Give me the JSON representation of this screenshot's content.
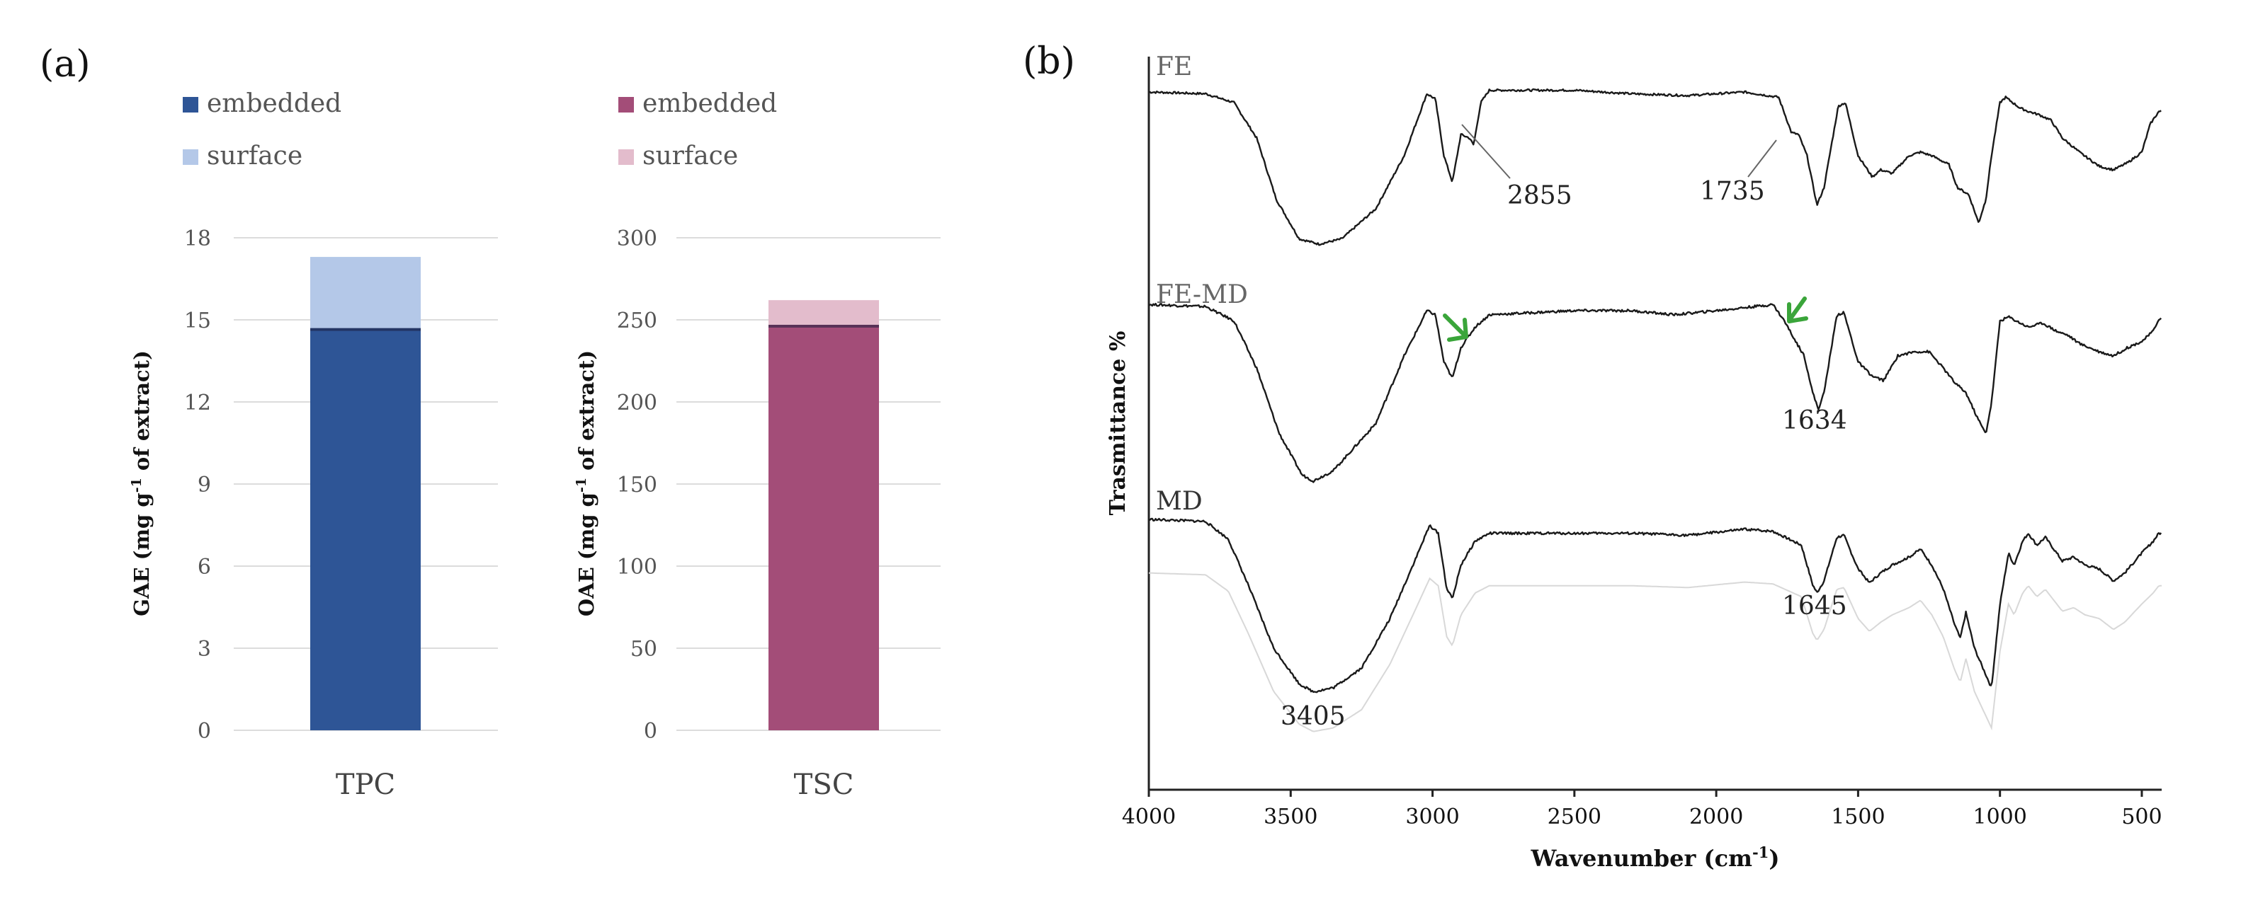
{
  "panels": {
    "a_label": "(a)",
    "b_label": "(b)"
  },
  "chart_data": [
    {
      "type": "bar",
      "stacked": true,
      "categories": [
        "TPC"
      ],
      "series": [
        {
          "name": "embedded",
          "values": [
            14.7
          ],
          "color": "#2e5596"
        },
        {
          "name": "surface",
          "values": [
            2.6
          ],
          "color": "#b4c8e8"
        }
      ],
      "ylabel": "GAE (mg g-1 of extract)",
      "ylabel_main": "GAE (mg g",
      "ylabel_sup": "-1",
      "ylabel_tail": " of extract)",
      "ylim": [
        0,
        18
      ],
      "yticks": [
        "0",
        "3",
        "6",
        "9",
        "12",
        "15",
        "18"
      ],
      "legend": [
        "embedded",
        "surface"
      ],
      "legend_position": "top-left",
      "grid": true
    },
    {
      "type": "bar",
      "stacked": true,
      "categories": [
        "TSC"
      ],
      "series": [
        {
          "name": "embedded",
          "values": [
            247
          ],
          "color": "#a34d78"
        },
        {
          "name": "surface",
          "values": [
            15
          ],
          "color": "#e3bccc"
        }
      ],
      "ylabel": "OAE (mg g-1 of extract)",
      "ylabel_main": "OAE (mg g",
      "ylabel_sup": "-1",
      "ylabel_tail": " of extract)",
      "ylim": [
        0,
        300
      ],
      "yticks": [
        "0",
        "50",
        "100",
        "150",
        "200",
        "250",
        "300"
      ],
      "legend": [
        "embedded",
        "surface"
      ],
      "legend_position": "top-left",
      "grid": true
    },
    {
      "type": "line",
      "title": "",
      "xlabel": "Wavenumber (cm-1)",
      "xlabel_main": "Wavenumber (cm",
      "xlabel_sup": "-1",
      "xlabel_tail": ")",
      "ylabel": "Trasmittance %",
      "xlim": [
        4000,
        430
      ],
      "xticks": [
        "4000",
        "3500",
        "3000",
        "2500",
        "2000",
        "1500",
        "1000",
        "500"
      ],
      "xtick_values": [
        4000,
        3500,
        3000,
        2500,
        2000,
        1500,
        1000,
        500
      ],
      "series": [
        {
          "name": "FE",
          "color": "#1a1a1a",
          "baseline": 0.9,
          "noise": 0.012,
          "points": [
            [
              4000,
              0.96
            ],
            [
              3800,
              0.95
            ],
            [
              3700,
              0.9
            ],
            [
              3620,
              0.7
            ],
            [
              3550,
              0.35
            ],
            [
              3470,
              0.13
            ],
            [
              3400,
              0.1
            ],
            [
              3320,
              0.13
            ],
            [
              3200,
              0.3
            ],
            [
              3100,
              0.6
            ],
            [
              3020,
              0.95
            ],
            [
              2990,
              0.92
            ],
            [
              2960,
              0.6
            ],
            [
              2930,
              0.45
            ],
            [
              2900,
              0.72
            ],
            [
              2870,
              0.7
            ],
            [
              2855,
              0.66
            ],
            [
              2830,
              0.9
            ],
            [
              2800,
              0.97
            ],
            [
              2500,
              0.97
            ],
            [
              2300,
              0.95
            ],
            [
              2100,
              0.94
            ],
            [
              1900,
              0.96
            ],
            [
              1780,
              0.93
            ],
            [
              1735,
              0.73
            ],
            [
              1710,
              0.72
            ],
            [
              1680,
              0.6
            ],
            [
              1645,
              0.32
            ],
            [
              1620,
              0.42
            ],
            [
              1570,
              0.88
            ],
            [
              1545,
              0.9
            ],
            [
              1500,
              0.6
            ],
            [
              1450,
              0.48
            ],
            [
              1420,
              0.52
            ],
            [
              1380,
              0.5
            ],
            [
              1320,
              0.6
            ],
            [
              1280,
              0.62
            ],
            [
              1240,
              0.6
            ],
            [
              1180,
              0.55
            ],
            [
              1150,
              0.42
            ],
            [
              1110,
              0.38
            ],
            [
              1075,
              0.22
            ],
            [
              1050,
              0.35
            ],
            [
              1030,
              0.6
            ],
            [
              1000,
              0.9
            ],
            [
              980,
              0.93
            ],
            [
              930,
              0.87
            ],
            [
              900,
              0.85
            ],
            [
              860,
              0.83
            ],
            [
              820,
              0.8
            ],
            [
              780,
              0.7
            ],
            [
              720,
              0.62
            ],
            [
              650,
              0.54
            ],
            [
              600,
              0.52
            ],
            [
              550,
              0.56
            ],
            [
              500,
              0.62
            ],
            [
              470,
              0.78
            ],
            [
              440,
              0.85
            ]
          ]
        },
        {
          "name": "FE-MD",
          "color": "#1a1a1a",
          "noise": 0.012,
          "points": [
            [
              4000,
              0.93
            ],
            [
              3800,
              0.92
            ],
            [
              3700,
              0.85
            ],
            [
              3620,
              0.62
            ],
            [
              3540,
              0.3
            ],
            [
              3460,
              0.1
            ],
            [
              3420,
              0.07
            ],
            [
              3350,
              0.12
            ],
            [
              3200,
              0.35
            ],
            [
              3100,
              0.68
            ],
            [
              3020,
              0.9
            ],
            [
              2990,
              0.88
            ],
            [
              2960,
              0.65
            ],
            [
              2930,
              0.57
            ],
            [
              2900,
              0.72
            ],
            [
              2850,
              0.82
            ],
            [
              2800,
              0.88
            ],
            [
              2500,
              0.9
            ],
            [
              2300,
              0.9
            ],
            [
              2150,
              0.88
            ],
            [
              2000,
              0.9
            ],
            [
              1800,
              0.93
            ],
            [
              1760,
              0.85
            ],
            [
              1720,
              0.75
            ],
            [
              1690,
              0.68
            ],
            [
              1660,
              0.5
            ],
            [
              1640,
              0.42
            ],
            [
              1620,
              0.5
            ],
            [
              1575,
              0.88
            ],
            [
              1550,
              0.89
            ],
            [
              1500,
              0.65
            ],
            [
              1450,
              0.58
            ],
            [
              1410,
              0.56
            ],
            [
              1360,
              0.68
            ],
            [
              1300,
              0.7
            ],
            [
              1250,
              0.7
            ],
            [
              1200,
              0.62
            ],
            [
              1160,
              0.55
            ],
            [
              1120,
              0.5
            ],
            [
              1080,
              0.38
            ],
            [
              1050,
              0.3
            ],
            [
              1030,
              0.45
            ],
            [
              1000,
              0.85
            ],
            [
              970,
              0.87
            ],
            [
              900,
              0.82
            ],
            [
              850,
              0.84
            ],
            [
              800,
              0.8
            ],
            [
              760,
              0.78
            ],
            [
              720,
              0.74
            ],
            [
              650,
              0.7
            ],
            [
              600,
              0.68
            ],
            [
              550,
              0.72
            ],
            [
              500,
              0.75
            ],
            [
              460,
              0.8
            ],
            [
              440,
              0.86
            ]
          ]
        },
        {
          "name": "MD",
          "color": "#1a1a1a",
          "noise": 0.012,
          "points": [
            [
              4000,
              0.95
            ],
            [
              3800,
              0.94
            ],
            [
              3720,
              0.85
            ],
            [
              3650,
              0.62
            ],
            [
              3560,
              0.3
            ],
            [
              3470,
              0.12
            ],
            [
              3420,
              0.08
            ],
            [
              3350,
              0.1
            ],
            [
              3250,
              0.2
            ],
            [
              3150,
              0.45
            ],
            [
              3060,
              0.75
            ],
            [
              3010,
              0.92
            ],
            [
              2980,
              0.88
            ],
            [
              2950,
              0.6
            ],
            [
              2930,
              0.55
            ],
            [
              2900,
              0.72
            ],
            [
              2850,
              0.84
            ],
            [
              2800,
              0.88
            ],
            [
              2500,
              0.88
            ],
            [
              2300,
              0.88
            ],
            [
              2100,
              0.87
            ],
            [
              1900,
              0.9
            ],
            [
              1800,
              0.89
            ],
            [
              1700,
              0.82
            ],
            [
              1660,
              0.62
            ],
            [
              1645,
              0.58
            ],
            [
              1620,
              0.64
            ],
            [
              1575,
              0.86
            ],
            [
              1550,
              0.87
            ],
            [
              1500,
              0.7
            ],
            [
              1460,
              0.63
            ],
            [
              1420,
              0.68
            ],
            [
              1380,
              0.72
            ],
            [
              1320,
              0.76
            ],
            [
              1280,
              0.8
            ],
            [
              1240,
              0.72
            ],
            [
              1200,
              0.6
            ],
            [
              1160,
              0.42
            ],
            [
              1140,
              0.35
            ],
            [
              1120,
              0.48
            ],
            [
              1090,
              0.3
            ],
            [
              1060,
              0.2
            ],
            [
              1030,
              0.1
            ],
            [
              1000,
              0.52
            ],
            [
              970,
              0.78
            ],
            [
              950,
              0.72
            ],
            [
              920,
              0.84
            ],
            [
              900,
              0.88
            ],
            [
              870,
              0.82
            ],
            [
              840,
              0.86
            ],
            [
              810,
              0.8
            ],
            [
              780,
              0.74
            ],
            [
              740,
              0.76
            ],
            [
              700,
              0.72
            ],
            [
              650,
              0.7
            ],
            [
              600,
              0.64
            ],
            [
              560,
              0.68
            ],
            [
              500,
              0.78
            ],
            [
              460,
              0.84
            ],
            [
              440,
              0.88
            ]
          ]
        }
      ],
      "annotations": [
        "2855",
        "1735",
        "1634",
        "1645",
        "3405"
      ]
    }
  ]
}
